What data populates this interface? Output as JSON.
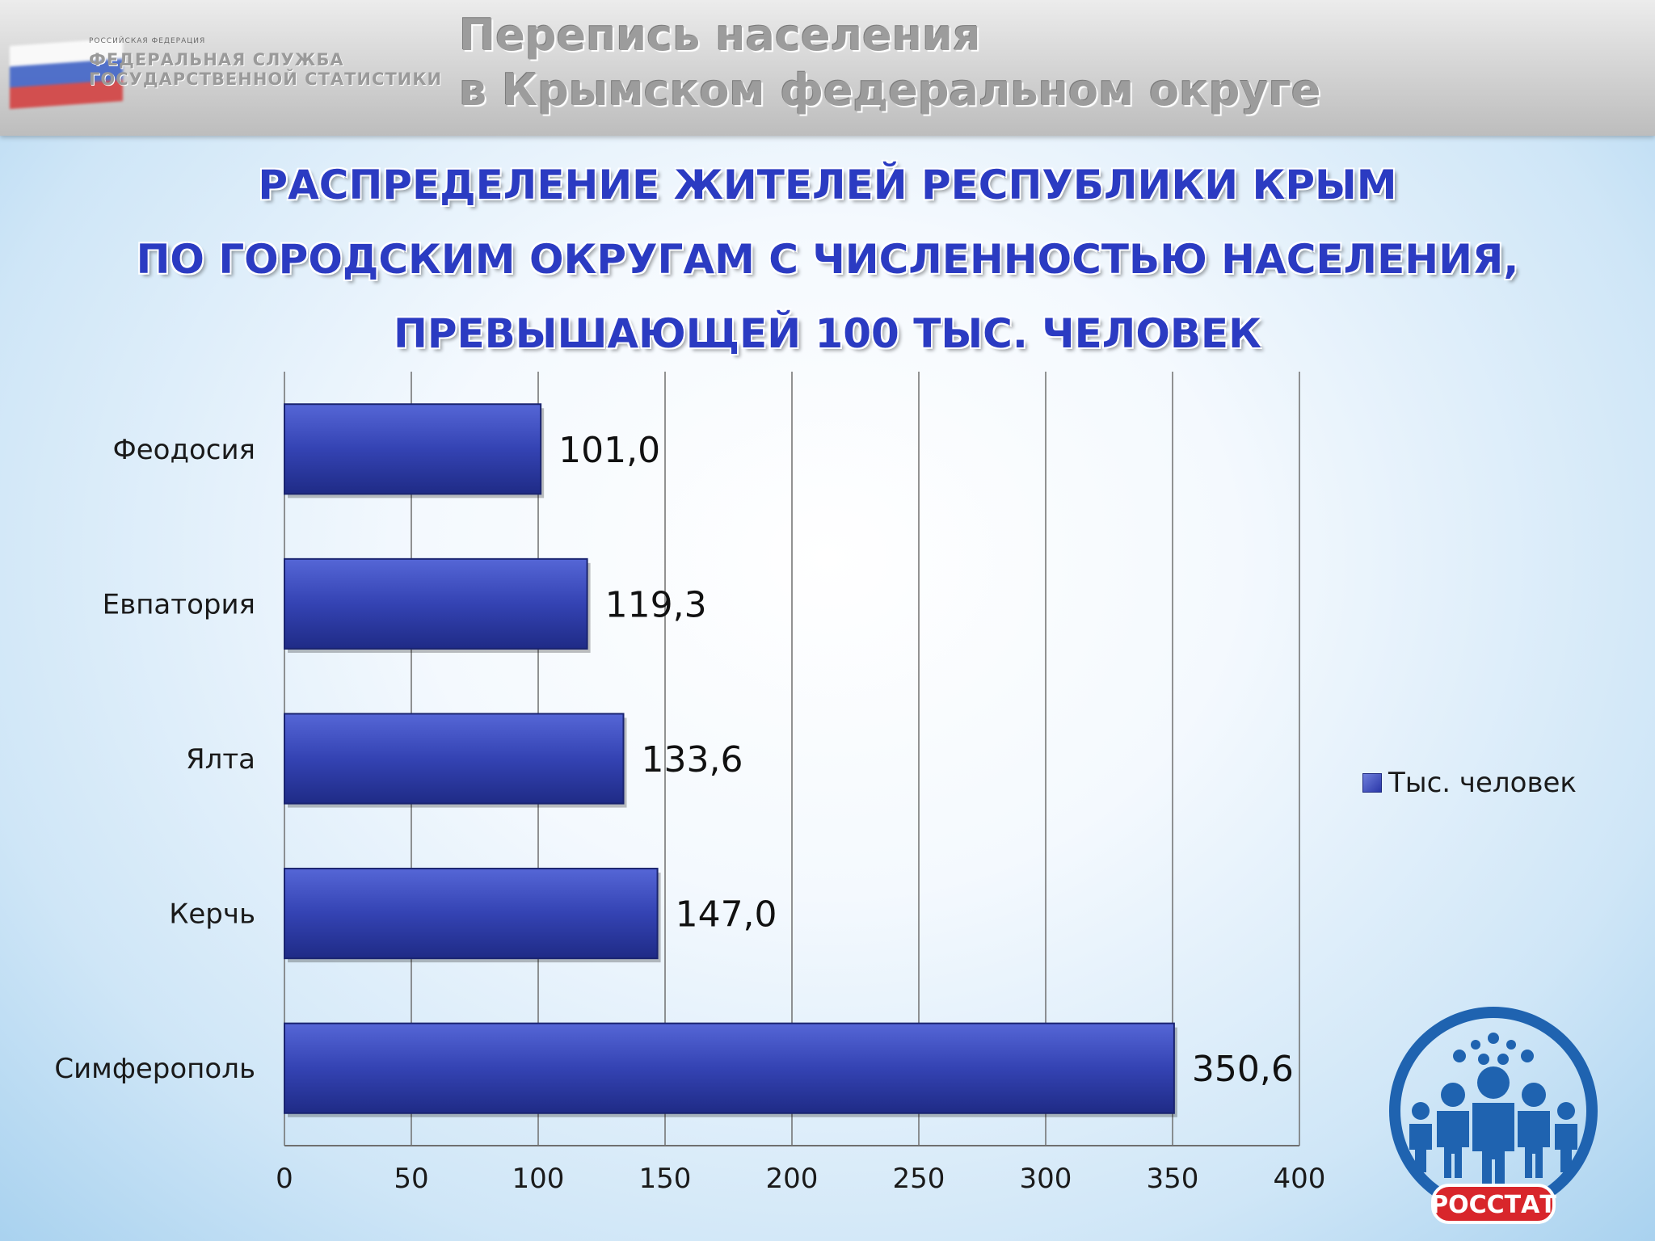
{
  "header": {
    "agency_small": "РОССИЙСКАЯ ФЕДЕРАЦИЯ",
    "agency_line1": "ФЕДЕРАЛЬНАЯ СЛУЖБА",
    "agency_line2": "ГОСУДАРСТВЕННОЙ СТАТИСТИКИ",
    "title_line1": "Перепись населения",
    "title_line2": "в Крымском федеральном округе"
  },
  "slide": {
    "title_line1": "РАСПРЕДЕЛЕНИЕ ЖИТЕЛЕЙ РЕСПУБЛИКИ КРЫМ",
    "title_line2": "ПО ГОРОДСКИМ ОКРУГАМ С ЧИСЛЕННОСТЬЮ НАСЕЛЕНИЯ,",
    "title_line3": "ПРЕВЫШАЮЩЕЙ 100 ТЫС. ЧЕЛОВЕК"
  },
  "chart_data": {
    "type": "bar",
    "orientation": "horizontal",
    "categories": [
      "Феодосия",
      "Евпатория",
      "Ялта",
      "Керчь",
      "Симферополь"
    ],
    "series": [
      {
        "name": "Тыс. человек",
        "values": [
          101.0,
          119.3,
          133.6,
          147.0,
          350.6
        ],
        "labels": [
          "101,0",
          "119,3",
          "133,6",
          "147,0",
          "350,6"
        ]
      }
    ],
    "xlim": [
      0,
      400
    ],
    "xticks": [
      0,
      50,
      100,
      150,
      200,
      250,
      300,
      350,
      400
    ],
    "grid": true,
    "legend_position": "right",
    "bar_color": "#3443b3"
  },
  "logo": {
    "text": "РОССТАТ",
    "ring_color": "#1f63b0",
    "badge_color": "#d8262b"
  }
}
